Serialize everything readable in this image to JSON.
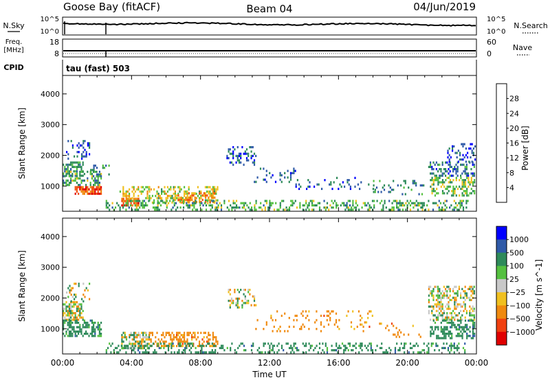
{
  "header": {
    "station": "Goose Bay (fitACF)",
    "beam": "Beam 04",
    "date": "04/Jun/2019"
  },
  "top_panels": {
    "nsky": {
      "left_label": "N.Sky",
      "left_ticks": [
        "10^5",
        "10^0"
      ],
      "right_label": "N.Search",
      "right_ticks": [
        "10^5",
        "10^0"
      ]
    },
    "freq": {
      "left_label_1": "Freq.",
      "left_label_2": "[MHz]",
      "left_ticks": [
        "18",
        "8"
      ],
      "right_label": "Nave",
      "right_ticks": [
        "60",
        "0"
      ]
    },
    "cpid": {
      "label": "CPID",
      "value": "tau (fast) 503"
    }
  },
  "colors": {
    "power_scale": [
      "#0000ff",
      "#2f5aa8",
      "#2e8a5a",
      "#55c040",
      "#f0c020",
      "#f08a10",
      "#f05010",
      "#e00000"
    ],
    "velocity_scale": [
      "#e00000",
      "#f04010",
      "#f08a10",
      "#f0c020",
      "#c8c8c8",
      "#55c040",
      "#2e8a5a",
      "#2f5aa8",
      "#0000ff"
    ]
  },
  "chart_data": [
    {
      "type": "heatmap",
      "name": "power",
      "xlabel": "",
      "ylabel": "Slant Range [km]",
      "x_ticks": [
        "00:00",
        "04:00",
        "08:00",
        "12:00",
        "16:00",
        "20:00",
        "00:00"
      ],
      "x_tick_values": [
        0,
        4,
        8,
        12,
        16,
        20,
        24
      ],
      "xlim": [
        0,
        24
      ],
      "y_ticks": [
        1000,
        2000,
        3000,
        4000
      ],
      "ylim": [
        180,
        4600
      ],
      "colorbar_label": "Power [dB]",
      "colorbar_ticks": [
        4,
        8,
        12,
        16,
        20,
        24,
        28
      ],
      "colorbar_range": [
        0,
        32
      ],
      "regions": [
        {
          "t": [
            0.0,
            1.2
          ],
          "r": [
            1300,
            1800
          ],
          "level": 10,
          "density": 0.6
        },
        {
          "t": [
            0.0,
            2.2
          ],
          "r": [
            1000,
            1500
          ],
          "level": 12,
          "density": 0.45
        },
        {
          "t": [
            0.7,
            2.2
          ],
          "r": [
            750,
            1000
          ],
          "level": 26,
          "density": 0.8
        },
        {
          "t": [
            1.6,
            2.7
          ],
          "r": [
            1400,
            1700
          ],
          "level": 8,
          "density": 0.35
        },
        {
          "t": [
            0.2,
            1.6
          ],
          "r": [
            1900,
            2500
          ],
          "level": 6,
          "density": 0.18
        },
        {
          "t": [
            3.4,
            4.4
          ],
          "r": [
            380,
            620
          ],
          "level": 25,
          "density": 0.8
        },
        {
          "t": [
            3.3,
            5.0
          ],
          "r": [
            600,
            1000
          ],
          "level": 18,
          "density": 0.45
        },
        {
          "t": [
            5.0,
            9.0
          ],
          "r": [
            450,
            1000
          ],
          "level": 16,
          "density": 0.35
        },
        {
          "t": [
            6.5,
            8.8
          ],
          "r": [
            500,
            800
          ],
          "level": 22,
          "density": 0.5
        },
        {
          "t": [
            2.5,
            23.5
          ],
          "r": [
            250,
            550
          ],
          "level": 12,
          "density": 0.35
        },
        {
          "t": [
            9.5,
            11.2
          ],
          "r": [
            1700,
            2300
          ],
          "level": 6,
          "density": 0.3
        },
        {
          "t": [
            11.0,
            13.5
          ],
          "r": [
            1100,
            1600
          ],
          "level": 6,
          "density": 0.15
        },
        {
          "t": [
            13.5,
            18.0
          ],
          "r": [
            900,
            1300
          ],
          "level": 7,
          "density": 0.12
        },
        {
          "t": [
            18.0,
            21.0
          ],
          "r": [
            700,
            1200
          ],
          "level": 9,
          "density": 0.12
        },
        {
          "t": [
            21.2,
            23.9
          ],
          "r": [
            1300,
            1800
          ],
          "level": 8,
          "density": 0.45
        },
        {
          "t": [
            22.3,
            23.9
          ],
          "r": [
            1800,
            2400
          ],
          "level": 5,
          "density": 0.3
        },
        {
          "t": [
            21.3,
            23.9
          ],
          "r": [
            700,
            1300
          ],
          "level": 14,
          "density": 0.4
        }
      ]
    },
    {
      "type": "heatmap",
      "name": "velocity",
      "xlabel": "Time UT",
      "ylabel": "Slant Range [km]",
      "x_ticks": [
        "00:00",
        "04:00",
        "08:00",
        "12:00",
        "16:00",
        "20:00",
        "00:00"
      ],
      "x_tick_values": [
        0,
        4,
        8,
        12,
        16,
        20,
        24
      ],
      "xlim": [
        0,
        24
      ],
      "y_ticks": [
        1000,
        2000,
        3000,
        4000
      ],
      "ylim": [
        180,
        4600
      ],
      "colorbar_label": "Velocity [m s^-1]",
      "colorbar_ticks": [
        "1000",
        "500",
        "100",
        "25",
        "−25",
        "−100",
        "−500",
        "−1000"
      ],
      "regions": [
        {
          "t": [
            0.0,
            1.2
          ],
          "r": [
            1300,
            1900
          ],
          "level": 0,
          "density": 0.55
        },
        {
          "t": [
            0.0,
            2.2
          ],
          "r": [
            750,
            1300
          ],
          "level": 60,
          "density": 0.55
        },
        {
          "t": [
            0.2,
            1.6
          ],
          "r": [
            1900,
            2500
          ],
          "level": 0,
          "density": 0.15
        },
        {
          "t": [
            3.4,
            5.0
          ],
          "r": [
            380,
            900
          ],
          "level": 0,
          "density": 0.6
        },
        {
          "t": [
            5.0,
            9.0
          ],
          "r": [
            450,
            900
          ],
          "level": -60,
          "density": 0.4
        },
        {
          "t": [
            2.5,
            23.5
          ],
          "r": [
            250,
            550
          ],
          "level": 60,
          "density": 0.3
        },
        {
          "t": [
            9.5,
            11.2
          ],
          "r": [
            1700,
            2300
          ],
          "level": 0,
          "density": 0.25
        },
        {
          "t": [
            11.0,
            18.0
          ],
          "r": [
            900,
            1600
          ],
          "level": -60,
          "density": 0.1
        },
        {
          "t": [
            18.0,
            21.0
          ],
          "r": [
            700,
            1200
          ],
          "level": -60,
          "density": 0.1
        },
        {
          "t": [
            21.2,
            23.9
          ],
          "r": [
            1300,
            2400
          ],
          "level": 0,
          "density": 0.45
        },
        {
          "t": [
            21.3,
            23.9
          ],
          "r": [
            700,
            1300
          ],
          "level": 60,
          "density": 0.45
        }
      ]
    }
  ]
}
